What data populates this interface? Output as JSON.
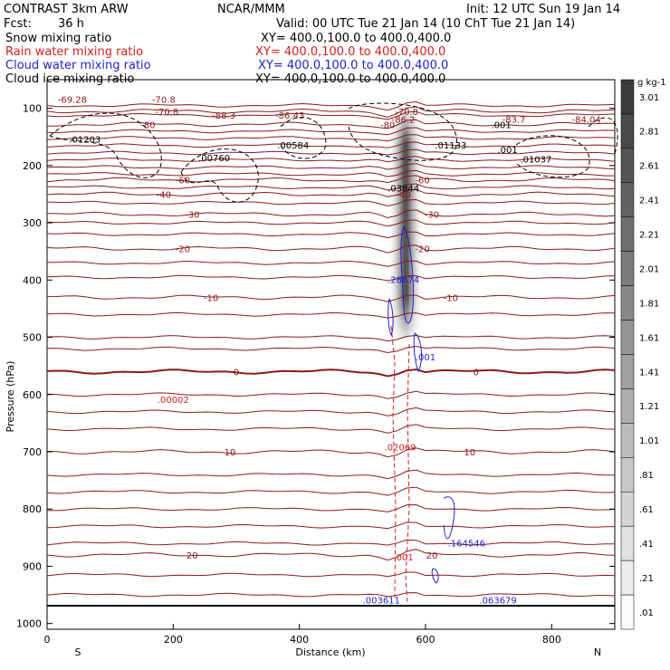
{
  "header": {
    "model": "CONTRAST   3km ARW",
    "center": "NCAR/MMM",
    "init": "Init: 12 UTC Sun 19 Jan 14",
    "fcst_label": "Fcst:",
    "fcst_value": "36 h",
    "valid": "Valid: 00 UTC Tue 21 Jan 14 (10 ChT Tue 21 Jan 14)"
  },
  "legend": [
    {
      "name": "Snow mixing ratio",
      "xy": "XY= 400.0,100.0 to 400.0,400.0",
      "color": "#000000"
    },
    {
      "name": "Rain water mixing ratio",
      "xy": "XY= 400.0,100.0 to 400.0,400.0",
      "color": "#d42020"
    },
    {
      "name": "Cloud water mixing ratio",
      "xy": "XY= 400.0,100.0 to 400.0,400.0",
      "color": "#1f1fd0"
    },
    {
      "name": "Cloud ice mixing ratio",
      "xy": "XY= 400.0,100.0 to 400.0,400.0",
      "color": "#000000"
    }
  ],
  "chart_data": {
    "type": "contour",
    "xlabel": "Distance (km)",
    "ylabel": "Pressure (hPa)",
    "xlim": [
      0,
      900
    ],
    "ylim": [
      1010,
      50
    ],
    "x_ticks": [
      "0",
      "200",
      "400",
      "600",
      "800"
    ],
    "x_tick_values": [
      0,
      200,
      400,
      600,
      800
    ],
    "y_ticks": [
      "100",
      "200",
      "300",
      "400",
      "500",
      "600",
      "700",
      "800",
      "900",
      "1000"
    ],
    "y_tick_values": [
      100,
      200,
      300,
      400,
      500,
      600,
      700,
      800,
      900,
      1000
    ],
    "end_labels": {
      "left": "S",
      "right": "N"
    },
    "temperature_isotherms_C": [
      {
        "label": "-70.8",
        "p": 105,
        "x": [
          0,
          900
        ],
        "labelx": 190
      },
      {
        "label": "-80",
        "p": 128,
        "x": [
          0,
          900
        ],
        "labelx": 160
      },
      {
        "label": "-60",
        "p": 225,
        "x": [
          0,
          900
        ],
        "labelx": 215
      },
      {
        "label": "-40",
        "p": 250,
        "x": [
          0,
          900
        ],
        "labelx": 185
      },
      {
        "label": "-30",
        "p": 285,
        "x": [
          0,
          900
        ],
        "labelx": 230
      },
      {
        "label": "-20",
        "p": 345,
        "x": [
          0,
          900
        ],
        "labelx": 215
      },
      {
        "label": "-10",
        "p": 430,
        "x": [
          0,
          900
        ],
        "labelx": 260
      },
      {
        "label": "0",
        "p": 560,
        "x": [
          0,
          900
        ],
        "labelx": 300
      },
      {
        "label": "10",
        "p": 700,
        "x": [
          0,
          900
        ],
        "labelx": 290
      },
      {
        "label": "20",
        "p": 880,
        "x": [
          0,
          900
        ],
        "labelx": 230
      }
    ],
    "annotations": [
      {
        "text": "-69.28",
        "x": 40,
        "p": 90,
        "color": "#8b1a1a"
      },
      {
        "text": "-70.8",
        "x": 185,
        "p": 90,
        "color": "#8b1a1a"
      },
      {
        "text": "-88.3",
        "x": 280,
        "p": 118,
        "color": "#8b1a1a"
      },
      {
        "text": "-86.43",
        "x": 385,
        "p": 118,
        "color": "#8b1a1a"
      },
      {
        "text": "-86.2",
        "x": 565,
        "p": 125,
        "color": "#8b1a1a"
      },
      {
        "text": "-83.7",
        "x": 740,
        "p": 125,
        "color": "#8b1a1a"
      },
      {
        "text": "-84.04",
        "x": 855,
        "p": 125,
        "color": "#8b1a1a"
      },
      {
        "text": ".01203",
        "x": 60,
        "p": 160,
        "color": "#000000"
      },
      {
        "text": ".00584",
        "x": 390,
        "p": 170,
        "color": "#000000"
      },
      {
        "text": ".01133",
        "x": 640,
        "p": 170,
        "color": "#000000"
      },
      {
        "text": ".00760",
        "x": 265,
        "p": 192,
        "color": "#000000"
      },
      {
        "text": ".01037",
        "x": 775,
        "p": 195,
        "color": "#000000"
      },
      {
        "text": ".03844",
        "x": 565,
        "p": 245,
        "color": "#000000"
      },
      {
        "text": ".001",
        "x": 720,
        "p": 135,
        "color": "#000000"
      },
      {
        "text": ".001",
        "x": 730,
        "p": 178,
        "color": "#000000"
      },
      {
        "text": ".28674",
        "x": 565,
        "p": 405,
        "color": "#1f1fd0"
      },
      {
        "text": ".001",
        "x": 600,
        "p": 540,
        "color": "#1f1fd0"
      },
      {
        "text": ".00002",
        "x": 200,
        "p": 615,
        "color": "#d42020"
      },
      {
        "text": ".02069",
        "x": 560,
        "p": 698,
        "color": "#d42020"
      },
      {
        "text": ".164546",
        "x": 665,
        "p": 865,
        "color": "#1f1fd0"
      },
      {
        "text": ".001",
        "x": 565,
        "p": 890,
        "color": "#d42020"
      },
      {
        "text": ".003611",
        "x": 530,
        "p": 965,
        "color": "#1f1fd0"
      },
      {
        "text": ".063679",
        "x": 715,
        "p": 965,
        "color": "#1f1fd0"
      }
    ],
    "colorbar": {
      "unit": "g kg-1",
      "levels": [
        "3.01",
        "2.81",
        "2.61",
        "2.41",
        "2.21",
        "2.01",
        "1.81",
        "1.61",
        "1.41",
        "1.21",
        "1.01",
        ".81",
        ".61",
        ".41",
        ".21",
        ".01"
      ]
    }
  }
}
